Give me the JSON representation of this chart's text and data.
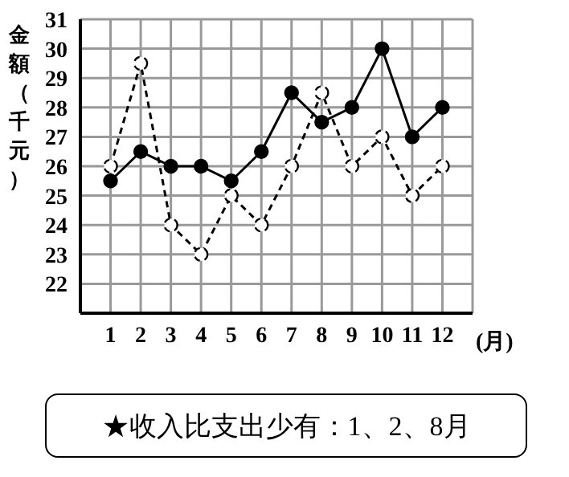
{
  "chart_data": {
    "type": "line",
    "ylabel": "金額（千元）",
    "xlabel": "(月)",
    "x": [
      1,
      2,
      3,
      4,
      5,
      6,
      7,
      8,
      9,
      10,
      11,
      12
    ],
    "xlim": [
      0,
      13
    ],
    "xticks": [
      1,
      2,
      3,
      4,
      5,
      6,
      7,
      8,
      9,
      10,
      11,
      12
    ],
    "ylim": [
      21,
      31
    ],
    "yticks": [
      22,
      23,
      24,
      25,
      26,
      27,
      28,
      29,
      30,
      31
    ],
    "grid": true,
    "marker": "circle",
    "series": [
      {
        "color": "#000000",
        "line_style": "solid",
        "values": [
          25.5,
          26.5,
          26,
          26,
          25.5,
          26.5,
          28.5,
          27.5,
          28,
          30,
          27,
          28
        ]
      },
      {
        "color": "#000000",
        "line_style": "dashed",
        "values": [
          26,
          29.5,
          24,
          23,
          25,
          24,
          26,
          28.5,
          26,
          27,
          25,
          26
        ]
      }
    ],
    "annotations": [
      "★收入比支出少有：1、2、8月"
    ]
  }
}
